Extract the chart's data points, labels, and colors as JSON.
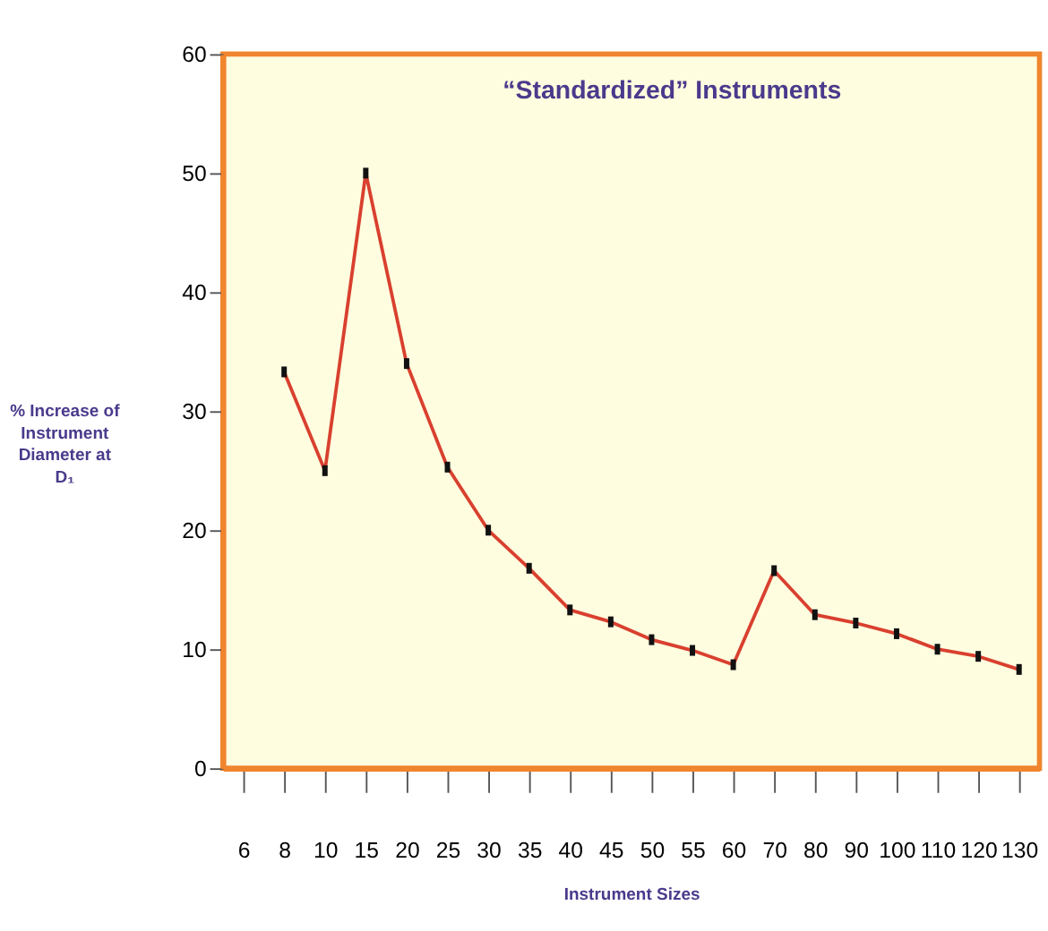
{
  "chart_data": {
    "type": "line",
    "title": "“Standardized” Instruments",
    "xlabel": "Instrument Sizes",
    "ylabel": "% Increase of Instrument Diameter at D₁",
    "categories": [
      "6",
      "8",
      "10",
      "15",
      "20",
      "25",
      "30",
      "35",
      "40",
      "45",
      "50",
      "55",
      "60",
      "70",
      "80",
      "90",
      "100",
      "110",
      "120",
      "130"
    ],
    "series": [
      {
        "color": "#d9402f",
        "values": [
          null,
          33.3,
          25,
          50,
          34,
          25.3,
          20,
          16.8,
          13.3,
          12.3,
          10.8,
          9.9,
          8.7,
          16.6,
          12.9,
          12.2,
          11.3,
          10,
          9.4,
          8.3
        ]
      }
    ],
    "ylim": [
      0,
      60
    ],
    "yticks": [
      0,
      10,
      20,
      30,
      40,
      50,
      60
    ],
    "grid": false,
    "marker": "square",
    "line_style": "solid"
  }
}
